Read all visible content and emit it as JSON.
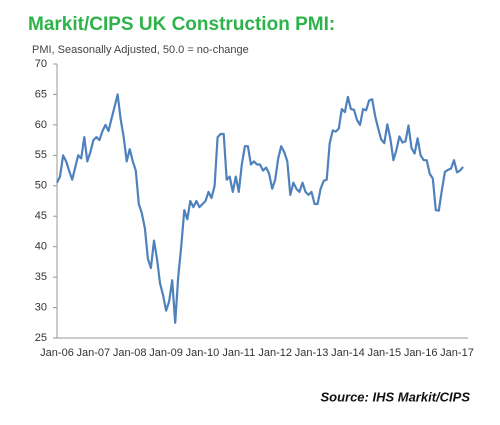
{
  "chart_data": {
    "type": "line",
    "title": "Markit/CIPS UK Construction PMI:",
    "subtitle": "PMI, Seasonally Adjusted, 50.0 = no-change",
    "source": "Source: IHS Markit/CIPS",
    "color": "#4f81bd",
    "ylim": [
      25,
      70
    ],
    "yticks": [
      25,
      30,
      35,
      40,
      45,
      50,
      55,
      60,
      65,
      70
    ],
    "grid": false,
    "categories": [
      "Jan-06",
      null,
      null,
      null,
      null,
      null,
      null,
      null,
      null,
      null,
      null,
      null,
      "Jan-07",
      null,
      null,
      null,
      null,
      null,
      null,
      null,
      null,
      null,
      null,
      null,
      "Jan-08",
      null,
      null,
      null,
      null,
      null,
      null,
      null,
      null,
      null,
      null,
      null,
      "Jan-09",
      null,
      null,
      null,
      null,
      null,
      null,
      null,
      null,
      null,
      null,
      null,
      "Jan-10",
      null,
      null,
      null,
      null,
      null,
      null,
      null,
      null,
      null,
      null,
      null,
      "Jan-11",
      null,
      null,
      null,
      null,
      null,
      null,
      null,
      null,
      null,
      null,
      null,
      "Jan-12",
      null,
      null,
      null,
      null,
      null,
      null,
      null,
      null,
      null,
      null,
      null,
      "Jan-13",
      null,
      null,
      null,
      null,
      null,
      null,
      null,
      null,
      null,
      null,
      null,
      "Jan-14",
      null,
      null,
      null,
      null,
      null,
      null,
      null,
      null,
      null,
      null,
      null,
      "Jan-15",
      null,
      null,
      null,
      null,
      null,
      null,
      null,
      null,
      null,
      null,
      null,
      "Jan-16",
      null,
      null,
      null,
      null,
      null,
      null,
      null,
      null,
      null,
      null,
      null,
      "Jan-17",
      null,
      null
    ],
    "values": [
      50.5,
      51.5,
      55.0,
      54.0,
      52.5,
      51.0,
      53.0,
      55.0,
      54.5,
      58.0,
      54.0,
      55.5,
      57.5,
      58.0,
      57.5,
      59.0,
      60.0,
      59.0,
      61.0,
      63.0,
      65.0,
      61.0,
      58.0,
      54.0,
      56.0,
      54.0,
      52.5,
      47.0,
      45.5,
      43.0,
      38.0,
      36.5,
      41.0,
      38.0,
      34.0,
      32.0,
      29.5,
      31.0,
      34.5,
      27.5,
      35.0,
      40.0,
      46.0,
      44.5,
      47.5,
      46.5,
      47.5,
      46.5,
      47.0,
      47.5,
      49.0,
      48.0,
      50.0,
      58.0,
      58.5,
      58.5,
      51.0,
      51.5,
      49.0,
      51.5,
      49.0,
      53.5,
      56.5,
      56.5,
      53.5,
      54.0,
      53.5,
      53.5,
      52.5,
      53.0,
      52.0,
      49.5,
      51.0,
      54.5,
      56.5,
      55.5,
      54.0,
      48.5,
      50.5,
      49.5,
      49.0,
      50.5,
      49.0,
      48.5,
      49.0,
      47.0,
      47.0,
      49.5,
      50.8,
      51.0,
      57.0,
      59.1,
      58.9,
      59.4,
      62.6,
      62.1,
      64.6,
      62.6,
      62.5,
      60.8,
      60.0,
      62.6,
      62.4,
      64.0,
      64.2,
      61.4,
      59.4,
      57.6,
      57.0,
      60.1,
      57.8,
      54.2,
      55.9,
      58.1,
      57.1,
      57.3,
      59.9,
      56.2,
      55.3,
      57.8,
      55.0,
      54.2,
      54.2,
      52.0,
      51.2,
      46.0,
      45.9,
      49.2,
      52.3,
      52.6,
      52.8,
      54.2,
      52.2,
      52.5,
      53.1
    ]
  }
}
